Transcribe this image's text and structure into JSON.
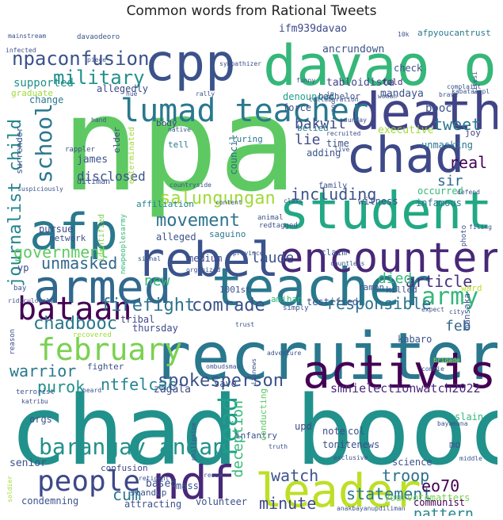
{
  "title": "Common words from Rational Tweets",
  "words": [
    {
      "text": "npa",
      "color": "#5ec962"
    },
    {
      "text": "chad booc",
      "color": "#21918c"
    },
    {
      "text": "recruiter",
      "color": "#2a788e"
    },
    {
      "text": "cpp",
      "color": "#3b528b"
    },
    {
      "text": "davao oro",
      "color": "#35b779"
    },
    {
      "text": "death",
      "color": "#414487"
    },
    {
      "text": "student",
      "color": "#22a884"
    },
    {
      "text": "teacher",
      "color": "#2a788e"
    },
    {
      "text": "rebel",
      "color": "#3b528b"
    },
    {
      "text": "afp",
      "color": "#2a788e"
    },
    {
      "text": "activist",
      "color": "#440154"
    },
    {
      "text": "encounter",
      "color": "#482878"
    },
    {
      "text": "chad",
      "color": "#3e4989"
    },
    {
      "text": "armed",
      "color": "#31688e"
    },
    {
      "text": "leader",
      "color": "#bddf26"
    },
    {
      "text": "ndf",
      "color": "#482878"
    },
    {
      "text": "lumad teacher",
      "color": "#2a788e"
    },
    {
      "text": "february",
      "color": "#7ad151"
    },
    {
      "text": "people",
      "color": "#3e4989"
    },
    {
      "text": "bataan",
      "color": "#440154"
    },
    {
      "text": "barangay andap",
      "color": "#21918c"
    },
    {
      "text": "army",
      "color": "#35b779"
    },
    {
      "text": "school",
      "color": "#2a788e"
    },
    {
      "text": "read",
      "color": "#1f9e89"
    },
    {
      "text": "npaconfusion",
      "color": "#3b528b"
    },
    {
      "text": "military",
      "color": "#21918c"
    },
    {
      "text": "firefight",
      "color": "#2c728e"
    },
    {
      "text": "spokesperson",
      "color": "#3b528b"
    },
    {
      "text": "chadbooc",
      "color": "#2a788e"
    },
    {
      "text": "salungungan",
      "color": "#a0da39"
    },
    {
      "text": "movement",
      "color": "#2c728e"
    },
    {
      "text": "including",
      "color": "#3b528b"
    },
    {
      "text": "journalist child",
      "color": "#25858e"
    },
    {
      "text": "comrade",
      "color": "#3b528b"
    },
    {
      "text": "government",
      "color": "#5ec962"
    },
    {
      "text": "unmasked",
      "color": "#31688e"
    },
    {
      "text": "article",
      "color": "#46327e"
    },
    {
      "text": "responsible",
      "color": "#2c728e"
    },
    {
      "text": "statement",
      "color": "#2a788e"
    },
    {
      "text": "minute",
      "color": "#3e4989"
    },
    {
      "text": "watch",
      "color": "#3b528b"
    },
    {
      "text": "troop",
      "color": "#2c728e"
    },
    {
      "text": "pattern",
      "color": "#25858e"
    },
    {
      "text": "warrior",
      "color": "#2a788e"
    },
    {
      "text": "purok",
      "color": "#21918c"
    },
    {
      "text": "ntfelcac",
      "color": "#25858e"
    },
    {
      "text": "deception",
      "color": "#35b779"
    },
    {
      "text": "eo70",
      "color": "#440154"
    },
    {
      "text": "smnielectionwatch2022",
      "color": "#482878"
    },
    {
      "text": "cum",
      "color": "#2a788e"
    },
    {
      "text": "tweet",
      "color": "#2a788e"
    },
    {
      "text": "real",
      "color": "#440154"
    },
    {
      "text": "bakwit",
      "color": "#3e4989"
    },
    {
      "text": "lie",
      "color": "#3e4989"
    },
    {
      "text": "sir",
      "color": "#31688e"
    },
    {
      "text": "died",
      "color": "#35b779"
    },
    {
      "text": "feb",
      "color": "#31688e"
    },
    {
      "text": "laude",
      "color": "#3b528b"
    },
    {
      "text": "new",
      "color": "#35b779"
    },
    {
      "text": "booc",
      "color": "#3b528b"
    },
    {
      "text": "supported",
      "color": "#21918c"
    },
    {
      "text": "change",
      "color": "#2a788e"
    },
    {
      "text": "allegedly",
      "color": "#3e4989"
    },
    {
      "text": "disclosed",
      "color": "#3b528b"
    },
    {
      "text": "ancrundown",
      "color": "#3b528b"
    },
    {
      "text": "tabloidista",
      "color": "#414487"
    },
    {
      "text": "mandaya",
      "color": "#3b528b"
    },
    {
      "text": "check",
      "color": "#3b528b"
    },
    {
      "text": "told",
      "color": "#482878"
    },
    {
      "text": "afpyoucantrust",
      "color": "#2a788e"
    },
    {
      "text": "ifm939davao",
      "color": "#3e4989"
    },
    {
      "text": "denounced",
      "color": "#1f9e89"
    },
    {
      "text": "force",
      "color": "#3b528b"
    },
    {
      "text": "belied",
      "color": "#2a788e"
    },
    {
      "text": "executive",
      "color": "#a0da39"
    },
    {
      "text": "unmasking",
      "color": "#2a788e"
    },
    {
      "text": "occurred",
      "color": "#35b779"
    },
    {
      "text": "infamous",
      "color": "#2a788e"
    },
    {
      "text": "witness",
      "color": "#3b528b"
    },
    {
      "text": "adding",
      "color": "#3b528b"
    },
    {
      "text": "time",
      "color": "#3b528b"
    },
    {
      "text": "joy",
      "color": "#414487"
    },
    {
      "text": "luring",
      "color": "#2a788e"
    },
    {
      "text": "council",
      "color": "#2c728e"
    },
    {
      "text": "elder",
      "color": "#3e4989"
    },
    {
      "text": "james",
      "color": "#3b528b"
    },
    {
      "text": "tell",
      "color": "#2a788e"
    },
    {
      "text": "body",
      "color": "#3e4989"
    },
    {
      "text": "alleged",
      "color": "#3b528b"
    },
    {
      "text": "affiliation",
      "color": "#25858e"
    },
    {
      "text": "saguino",
      "color": "#2a788e"
    },
    {
      "text": "network",
      "color": "#3b528b"
    },
    {
      "text": "pursue",
      "color": "#3e4989"
    },
    {
      "text": "vp",
      "color": "#3e4989"
    },
    {
      "text": "claim",
      "color": "#3b528b"
    },
    {
      "text": "medium",
      "color": "#3e4989"
    },
    {
      "text": "1001st",
      "color": "#3b528b"
    },
    {
      "text": "ramon",
      "color": "#3b528b"
    },
    {
      "text": "killed",
      "color": "#3b528b"
    },
    {
      "text": "ward",
      "color": "#bddf26"
    },
    {
      "text": "testified",
      "color": "#3b528b"
    },
    {
      "text": "amihan",
      "color": "#35b779"
    },
    {
      "text": "tribal",
      "color": "#3e4989"
    },
    {
      "text": "thursday",
      "color": "#3e4989"
    },
    {
      "text": "kabaro",
      "color": "#3b528b"
    },
    {
      "text": "mansaka",
      "color": "#3b528b"
    },
    {
      "text": "fighter",
      "color": "#3b528b"
    },
    {
      "text": "zagala",
      "color": "#3e4989"
    },
    {
      "text": "save",
      "color": "#3b528b"
    },
    {
      "text": "orgs",
      "color": "#3b528b"
    },
    {
      "text": "senior",
      "color": "#3b528b"
    },
    {
      "text": "mass",
      "color": "#3b528b"
    },
    {
      "text": "confusion",
      "color": "#3e4989"
    },
    {
      "text": "based",
      "color": "#3b528b"
    },
    {
      "text": "standup",
      "color": "#3b528b"
    },
    {
      "text": "attracting",
      "color": "#3b528b"
    },
    {
      "text": "volunteer",
      "color": "#3b528b"
    },
    {
      "text": "condemning",
      "color": "#3b528b"
    },
    {
      "text": "infantry",
      "color": "#3b528b"
    },
    {
      "text": "conducting",
      "color": "#5ec962"
    },
    {
      "text": "upd",
      "color": "#3e4989"
    },
    {
      "text": "note",
      "color": "#3e4989"
    },
    {
      "text": "col",
      "color": "#3b528b"
    },
    {
      "text": "tonitenews",
      "color": "#3b528b"
    },
    {
      "text": "science",
      "color": "#3b528b"
    },
    {
      "text": "yourvotematters",
      "color": "#7ad151"
    },
    {
      "text": "communist",
      "color": "#440154"
    },
    {
      "text": "slain",
      "color": "#35b779"
    },
    {
      "text": "mo",
      "color": "#3b528b"
    },
    {
      "text": "graduate",
      "color": "#a0da39"
    },
    {
      "text": "bachelor",
      "color": "#3b528b"
    },
    {
      "text": "surrender",
      "color": "#3b528b"
    },
    {
      "text": "exterminated",
      "color": "#a0da39"
    },
    {
      "text": "identified",
      "color": "#7ad151"
    },
    {
      "text": "newpeoplesarmy",
      "color": "#35b779"
    },
    {
      "text": "rappler",
      "color": "#3b528b"
    },
    {
      "text": "diliman",
      "color": "#3b528b"
    },
    {
      "text": "animal",
      "color": "#3b528b"
    },
    {
      "text": "redtagged",
      "color": "#3b528b"
    },
    {
      "text": "family",
      "color": "#3b528b"
    },
    {
      "text": "infected",
      "color": "#3b528b"
    },
    {
      "text": "mainstream",
      "color": "#3b528b"
    },
    {
      "text": "davaodeoro",
      "color": "#3b528b"
    },
    {
      "text": "piece",
      "color": "#3b528b"
    },
    {
      "text": "sympathizer",
      "color": "#3b528b"
    },
    {
      "text": "funny",
      "color": "#3b528b"
    },
    {
      "text": "kabataanpl",
      "color": "#3b528b"
    },
    {
      "text": "10k",
      "color": "#3b528b"
    },
    {
      "text": "complaint",
      "color": "#3b528b"
    },
    {
      "text": "brave",
      "color": "#3b528b"
    },
    {
      "text": "hue",
      "color": "#3b528b"
    },
    {
      "text": "rally",
      "color": "#3b528b"
    },
    {
      "text": "hand",
      "color": "#3b528b"
    },
    {
      "text": "native",
      "color": "#3b528b"
    },
    {
      "text": "woman",
      "color": "#3b528b"
    },
    {
      "text": "sunday",
      "color": "#3b528b"
    },
    {
      "text": "recruited",
      "color": "#3b528b"
    },
    {
      "text": "live",
      "color": "#3b528b"
    },
    {
      "text": "poor",
      "color": "#3b528b"
    },
    {
      "text": "collaboration",
      "color": "#3b528b"
    },
    {
      "text": "defend",
      "color": "#3b528b"
    },
    {
      "text": "filing",
      "color": "#3b528b"
    },
    {
      "text": "photo",
      "color": "#3b528b"
    },
    {
      "text": "signal",
      "color": "#3b528b"
    },
    {
      "text": "province",
      "color": "#3b528b"
    },
    {
      "text": "countless",
      "color": "#3b528b"
    },
    {
      "text": "organized",
      "color": "#3b528b"
    },
    {
      "text": "bay",
      "color": "#3b528b"
    },
    {
      "text": "ridiculously",
      "color": "#3b528b"
    },
    {
      "text": "simply",
      "color": "#3b528b"
    },
    {
      "text": "expect",
      "color": "#3b528b"
    },
    {
      "text": "city",
      "color": "#3b528b"
    },
    {
      "text": "brigade",
      "color": "#a0da39"
    },
    {
      "text": "commie",
      "color": "#3b528b"
    },
    {
      "text": "recovered",
      "color": "#a0da39"
    },
    {
      "text": "reason",
      "color": "#3b528b"
    },
    {
      "text": "trust",
      "color": "#3b528b"
    },
    {
      "text": "adventure",
      "color": "#3b528b"
    },
    {
      "text": "ombudsman",
      "color": "#3b528b"
    },
    {
      "text": "ifmnews",
      "color": "#3b528b"
    },
    {
      "text": "terrorist",
      "color": "#3b528b"
    },
    {
      "text": "heard",
      "color": "#3b528b"
    },
    {
      "text": "katribu",
      "color": "#3b528b"
    },
    {
      "text": "philippine",
      "color": "#3b528b"
    },
    {
      "text": "bayamuna",
      "color": "#3b528b"
    },
    {
      "text": "ressa",
      "color": "#3b528b"
    },
    {
      "text": "truth",
      "color": "#3b528b"
    },
    {
      "text": "exclusive",
      "color": "#3b528b"
    },
    {
      "text": "middle",
      "color": "#3b528b"
    },
    {
      "text": "soldier",
      "color": "#a0da39"
    },
    {
      "text": "reticent",
      "color": "#3b528b"
    },
    {
      "text": "anakbayanupdiliman",
      "color": "#3b528b"
    },
    {
      "text": "suspiciously",
      "color": "#3b528b"
    },
    {
      "text": "countryside",
      "color": "#3b528b"
    },
    {
      "text": "content",
      "color": "#3b528b"
    },
    {
      "text": "class",
      "color": "#3b528b"
    },
    {
      "text": "ip",
      "color": "#3b528b"
    },
    {
      "text": "sitesi",
      "color": "#3b528b"
    }
  ]
}
